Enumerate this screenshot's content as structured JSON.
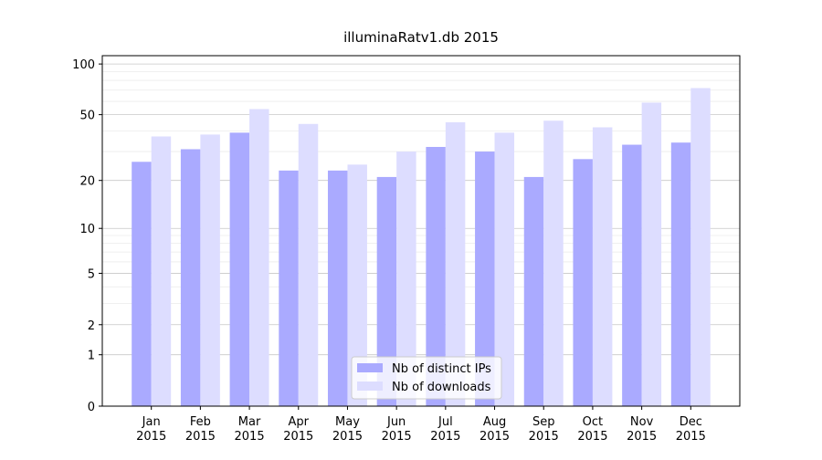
{
  "chart_data": {
    "type": "bar",
    "title": "illuminaRatv1.db 2015",
    "categories": [
      [
        "Jan",
        "2015"
      ],
      [
        "Feb",
        "2015"
      ],
      [
        "Mar",
        "2015"
      ],
      [
        "Apr",
        "2015"
      ],
      [
        "May",
        "2015"
      ],
      [
        "Jun",
        "2015"
      ],
      [
        "Jul",
        "2015"
      ],
      [
        "Aug",
        "2015"
      ],
      [
        "Sep",
        "2015"
      ],
      [
        "Oct",
        "2015"
      ],
      [
        "Nov",
        "2015"
      ],
      [
        "Dec",
        "2015"
      ]
    ],
    "series": [
      {
        "name": "Nb of distinct IPs",
        "color": "#aaaaff",
        "values": [
          26,
          31,
          39,
          23,
          23,
          21,
          32,
          30,
          21,
          27,
          33,
          34
        ]
      },
      {
        "name": "Nb of downloads",
        "color": "#ddddff",
        "values": [
          37,
          38,
          54,
          44,
          25,
          30,
          45,
          39,
          46,
          42,
          59,
          72
        ]
      }
    ],
    "yscale": "log1p",
    "ylim": [
      0,
      112
    ],
    "yticks": [
      0,
      1,
      2,
      5,
      10,
      20,
      50,
      100
    ],
    "minor_yticks": [
      3,
      4,
      6,
      7,
      8,
      9,
      30,
      40,
      60,
      70,
      80,
      90
    ],
    "grid": true,
    "legend": "lower center"
  }
}
